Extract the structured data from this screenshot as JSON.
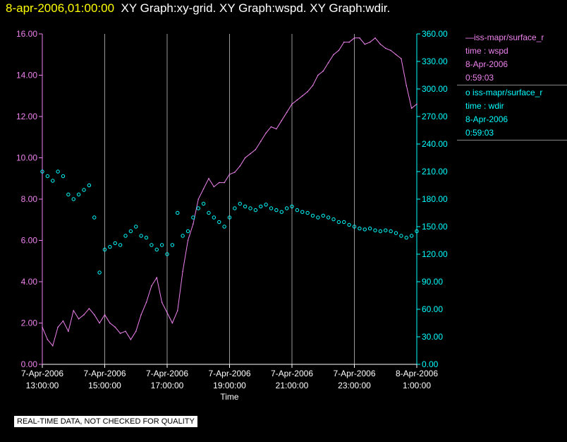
{
  "header": {
    "timestamp": "8-apr-2006,01:00:00",
    "titles": "XY Graph:xy-grid.  XY Graph:wspd.  XY Graph:wdir."
  },
  "notice": "REAL-TIME DATA, NOT CHECKED FOR QUALITY",
  "legend": [
    {
      "symbol": "—",
      "name": "iss-mapr/surface_r",
      "field": "time : wspd",
      "date": "8-Apr-2006",
      "time": "0:59:03"
    },
    {
      "symbol": "o",
      "name": "iss-mapr/surface_r",
      "field": "time : wdir",
      "date": "8-Apr-2006",
      "time": "0:59:03"
    }
  ],
  "colors": {
    "wspd": "#ee82ee",
    "wdir": "#00ffff",
    "grid": "#999999",
    "axis_x": "#ffffff"
  },
  "chart_data": {
    "type": "line",
    "xlabel": "Time",
    "x_ticks": [
      {
        "date": "7-Apr-2006",
        "time": "13:00:00"
      },
      {
        "date": "7-Apr-2006",
        "time": "15:00:00"
      },
      {
        "date": "7-Apr-2006",
        "time": "17:00:00"
      },
      {
        "date": "7-Apr-2006",
        "time": "19:00:00"
      },
      {
        "date": "7-Apr-2006",
        "time": "21:00:00"
      },
      {
        "date": "7-Apr-2006",
        "time": "23:00:00"
      },
      {
        "date": "8-Apr-2006",
        "time": "1:00:00"
      }
    ],
    "xlim": [
      "7-Apr-2006 13:00:00",
      "8-Apr-2006 01:00:00"
    ],
    "y_left": {
      "ylim": [
        0,
        16
      ],
      "ticks": [
        "0.00",
        "2.00",
        "4.00",
        "6.00",
        "8.00",
        "10.00",
        "12.00",
        "14.00",
        "16.00"
      ],
      "color": "#ee82ee"
    },
    "y_right": {
      "ylim": [
        0,
        360
      ],
      "ticks": [
        "0.00",
        "30.00",
        "60.00",
        "90.00",
        "120.00",
        "150.00",
        "180.00",
        "210.00",
        "240.00",
        "270.00",
        "300.00",
        "330.00",
        "360.00"
      ],
      "color": "#00ffff"
    },
    "grid": "vertical",
    "series": [
      {
        "name": "iss-mapr/surface_r",
        "style": "line",
        "axis": "left",
        "points": [
          [
            "7-Apr-2006 13:00",
            1.8
          ],
          [
            "7-Apr-2006 13:10",
            1.2
          ],
          [
            "7-Apr-2006 13:20",
            0.9
          ],
          [
            "7-Apr-2006 13:30",
            1.8
          ],
          [
            "7-Apr-2006 13:40",
            2.1
          ],
          [
            "7-Apr-2006 13:50",
            1.6
          ],
          [
            "7-Apr-2006 14:00",
            2.6
          ],
          [
            "7-Apr-2006 14:10",
            2.2
          ],
          [
            "7-Apr-2006 14:20",
            2.4
          ],
          [
            "7-Apr-2006 14:30",
            2.7
          ],
          [
            "7-Apr-2006 14:40",
            2.4
          ],
          [
            "7-Apr-2006 14:50",
            2.0
          ],
          [
            "7-Apr-2006 15:00",
            2.4
          ],
          [
            "7-Apr-2006 15:10",
            2.0
          ],
          [
            "7-Apr-2006 15:20",
            1.8
          ],
          [
            "7-Apr-2006 15:30",
            1.5
          ],
          [
            "7-Apr-2006 15:40",
            1.6
          ],
          [
            "7-Apr-2006 15:50",
            1.2
          ],
          [
            "7-Apr-2006 16:00",
            1.6
          ],
          [
            "7-Apr-2006 16:10",
            2.4
          ],
          [
            "7-Apr-2006 16:20",
            3.0
          ],
          [
            "7-Apr-2006 16:30",
            3.8
          ],
          [
            "7-Apr-2006 16:40",
            4.2
          ],
          [
            "7-Apr-2006 16:50",
            3.0
          ],
          [
            "7-Apr-2006 17:00",
            2.5
          ],
          [
            "7-Apr-2006 17:10",
            2.0
          ],
          [
            "7-Apr-2006 17:20",
            2.6
          ],
          [
            "7-Apr-2006 17:30",
            4.5
          ],
          [
            "7-Apr-2006 17:40",
            6.0
          ],
          [
            "7-Apr-2006 17:50",
            6.8
          ],
          [
            "7-Apr-2006 18:00",
            8.0
          ],
          [
            "7-Apr-2006 18:10",
            8.5
          ],
          [
            "7-Apr-2006 18:20",
            9.0
          ],
          [
            "7-Apr-2006 18:30",
            8.6
          ],
          [
            "7-Apr-2006 18:40",
            8.8
          ],
          [
            "7-Apr-2006 18:50",
            8.8
          ],
          [
            "7-Apr-2006 19:00",
            9.2
          ],
          [
            "7-Apr-2006 19:10",
            9.3
          ],
          [
            "7-Apr-2006 19:20",
            9.6
          ],
          [
            "7-Apr-2006 19:30",
            10.0
          ],
          [
            "7-Apr-2006 19:40",
            10.2
          ],
          [
            "7-Apr-2006 19:50",
            10.4
          ],
          [
            "7-Apr-2006 20:00",
            10.8
          ],
          [
            "7-Apr-2006 20:10",
            11.2
          ],
          [
            "7-Apr-2006 20:20",
            11.5
          ],
          [
            "7-Apr-2006 20:30",
            11.4
          ],
          [
            "7-Apr-2006 20:40",
            11.8
          ],
          [
            "7-Apr-2006 20:50",
            12.2
          ],
          [
            "7-Apr-2006 21:00",
            12.6
          ],
          [
            "7-Apr-2006 21:10",
            12.8
          ],
          [
            "7-Apr-2006 21:20",
            13.0
          ],
          [
            "7-Apr-2006 21:30",
            13.2
          ],
          [
            "7-Apr-2006 21:40",
            13.5
          ],
          [
            "7-Apr-2006 21:50",
            14.0
          ],
          [
            "7-Apr-2006 22:00",
            14.2
          ],
          [
            "7-Apr-2006 22:10",
            14.6
          ],
          [
            "7-Apr-2006 22:20",
            15.0
          ],
          [
            "7-Apr-2006 22:30",
            15.2
          ],
          [
            "7-Apr-2006 22:40",
            15.6
          ],
          [
            "7-Apr-2006 22:50",
            15.6
          ],
          [
            "7-Apr-2006 23:00",
            15.8
          ],
          [
            "7-Apr-2006 23:10",
            15.8
          ],
          [
            "7-Apr-2006 23:20",
            15.5
          ],
          [
            "7-Apr-2006 23:30",
            15.6
          ],
          [
            "7-Apr-2006 23:40",
            15.8
          ],
          [
            "7-Apr-2006 23:50",
            15.5
          ],
          [
            "8-Apr-2006 00:00",
            15.3
          ],
          [
            "8-Apr-2006 00:10",
            15.2
          ],
          [
            "8-Apr-2006 00:20",
            15.0
          ],
          [
            "8-Apr-2006 00:30",
            14.8
          ],
          [
            "8-Apr-2006 00:40",
            13.5
          ],
          [
            "8-Apr-2006 00:50",
            12.4
          ],
          [
            "8-Apr-2006 01:00",
            12.6
          ]
        ]
      },
      {
        "name": "iss-mapr/surface_r",
        "style": "circle",
        "axis": "right",
        "points": [
          [
            "7-Apr-2006 13:00",
            210
          ],
          [
            "7-Apr-2006 13:10",
            205
          ],
          [
            "7-Apr-2006 13:20",
            200
          ],
          [
            "7-Apr-2006 13:30",
            210
          ],
          [
            "7-Apr-2006 13:40",
            205
          ],
          [
            "7-Apr-2006 13:50",
            185
          ],
          [
            "7-Apr-2006 14:00",
            180
          ],
          [
            "7-Apr-2006 14:10",
            185
          ],
          [
            "7-Apr-2006 14:20",
            190
          ],
          [
            "7-Apr-2006 14:30",
            195
          ],
          [
            "7-Apr-2006 14:40",
            160
          ],
          [
            "7-Apr-2006 14:50",
            100
          ],
          [
            "7-Apr-2006 15:00",
            125
          ],
          [
            "7-Apr-2006 15:10",
            128
          ],
          [
            "7-Apr-2006 15:20",
            132
          ],
          [
            "7-Apr-2006 15:30",
            130
          ],
          [
            "7-Apr-2006 15:40",
            140
          ],
          [
            "7-Apr-2006 15:50",
            145
          ],
          [
            "7-Apr-2006 16:00",
            150
          ],
          [
            "7-Apr-2006 16:10",
            140
          ],
          [
            "7-Apr-2006 16:20",
            138
          ],
          [
            "7-Apr-2006 16:30",
            130
          ],
          [
            "7-Apr-2006 16:40",
            125
          ],
          [
            "7-Apr-2006 16:50",
            130
          ],
          [
            "7-Apr-2006 17:00",
            120
          ],
          [
            "7-Apr-2006 17:10",
            130
          ],
          [
            "7-Apr-2006 17:20",
            165
          ],
          [
            "7-Apr-2006 17:30",
            140
          ],
          [
            "7-Apr-2006 17:40",
            145
          ],
          [
            "7-Apr-2006 17:50",
            160
          ],
          [
            "7-Apr-2006 18:00",
            170
          ],
          [
            "7-Apr-2006 18:10",
            175
          ],
          [
            "7-Apr-2006 18:20",
            165
          ],
          [
            "7-Apr-2006 18:30",
            160
          ],
          [
            "7-Apr-2006 18:40",
            155
          ],
          [
            "7-Apr-2006 18:50",
            150
          ],
          [
            "7-Apr-2006 19:00",
            160
          ],
          [
            "7-Apr-2006 19:10",
            170
          ],
          [
            "7-Apr-2006 19:20",
            175
          ],
          [
            "7-Apr-2006 19:30",
            172
          ],
          [
            "7-Apr-2006 19:40",
            170
          ],
          [
            "7-Apr-2006 19:50",
            168
          ],
          [
            "7-Apr-2006 20:00",
            172
          ],
          [
            "7-Apr-2006 20:10",
            174
          ],
          [
            "7-Apr-2006 20:20",
            170
          ],
          [
            "7-Apr-2006 20:30",
            168
          ],
          [
            "7-Apr-2006 20:40",
            166
          ],
          [
            "7-Apr-2006 20:50",
            170
          ],
          [
            "7-Apr-2006 21:00",
            172
          ],
          [
            "7-Apr-2006 21:10",
            168
          ],
          [
            "7-Apr-2006 21:20",
            166
          ],
          [
            "7-Apr-2006 21:30",
            165
          ],
          [
            "7-Apr-2006 21:40",
            162
          ],
          [
            "7-Apr-2006 21:50",
            160
          ],
          [
            "7-Apr-2006 22:00",
            162
          ],
          [
            "7-Apr-2006 22:10",
            160
          ],
          [
            "7-Apr-2006 22:20",
            158
          ],
          [
            "7-Apr-2006 22:30",
            155
          ],
          [
            "7-Apr-2006 22:40",
            155
          ],
          [
            "7-Apr-2006 22:50",
            152
          ],
          [
            "7-Apr-2006 23:00",
            150
          ],
          [
            "7-Apr-2006 23:10",
            148
          ],
          [
            "7-Apr-2006 23:20",
            147
          ],
          [
            "7-Apr-2006 23:30",
            148
          ],
          [
            "7-Apr-2006 23:40",
            146
          ],
          [
            "7-Apr-2006 23:50",
            145
          ],
          [
            "8-Apr-2006 00:00",
            146
          ],
          [
            "8-Apr-2006 00:10",
            145
          ],
          [
            "8-Apr-2006 00:20",
            143
          ],
          [
            "8-Apr-2006 00:30",
            140
          ],
          [
            "8-Apr-2006 00:40",
            138
          ],
          [
            "8-Apr-2006 00:50",
            140
          ],
          [
            "8-Apr-2006 01:00",
            145
          ]
        ]
      }
    ]
  }
}
